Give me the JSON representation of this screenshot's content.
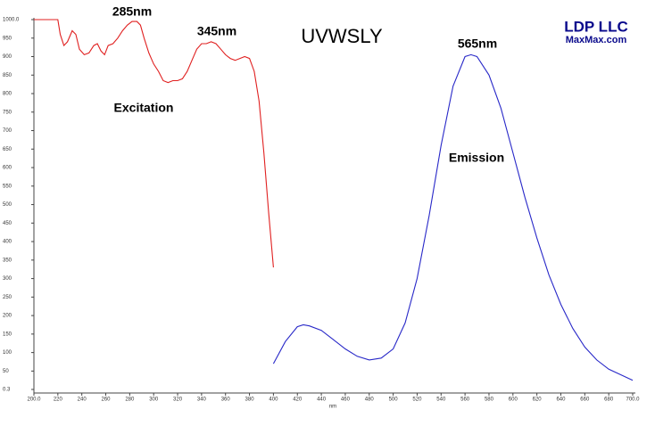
{
  "chart_data": {
    "type": "line",
    "x_label": "nm",
    "xlim": [
      200,
      700
    ],
    "ylim": [
      0.3,
      1000
    ],
    "xticks": [
      {
        "value": 200,
        "label": "200.0"
      },
      220,
      240,
      260,
      280,
      300,
      320,
      340,
      360,
      380,
      400,
      420,
      440,
      460,
      480,
      500,
      520,
      540,
      560,
      580,
      600,
      620,
      640,
      660,
      680,
      {
        "value": 700,
        "label": "700.0"
      }
    ],
    "yticks": [
      {
        "value": 1000,
        "label": "1000.0"
      },
      950,
      900,
      850,
      800,
      750,
      700,
      650,
      600,
      550,
      500,
      450,
      400,
      350,
      300,
      250,
      200,
      150,
      100,
      50,
      0.3
    ],
    "annotations": [
      "285nm",
      "345nm",
      "UVWSLY",
      "565nm"
    ],
    "brand": {
      "title": "LDP LLC",
      "site": "MaxMax.com"
    },
    "series": [
      {
        "name": "Excitation",
        "color": "#e02020",
        "x": [
          200,
          205,
          210,
          215,
          220,
          222,
          225,
          228,
          232,
          235,
          238,
          242,
          246,
          250,
          253,
          256,
          259,
          262,
          266,
          270,
          274,
          278,
          282,
          286,
          289,
          292,
          296,
          300,
          304,
          308,
          312,
          316,
          320,
          324,
          328,
          332,
          336,
          340,
          344,
          348,
          352,
          356,
          360,
          364,
          368,
          372,
          376,
          380,
          384,
          388,
          392,
          396,
          400
        ],
        "values": [
          1000,
          1000,
          1000,
          1000,
          1000,
          960,
          930,
          940,
          970,
          960,
          920,
          905,
          910,
          930,
          935,
          915,
          905,
          930,
          935,
          950,
          970,
          985,
          995,
          995,
          985,
          950,
          910,
          880,
          860,
          835,
          830,
          835,
          835,
          840,
          860,
          890,
          920,
          935,
          935,
          940,
          935,
          920,
          905,
          895,
          890,
          895,
          900,
          895,
          860,
          780,
          640,
          480,
          330
        ]
      },
      {
        "name": "Emission",
        "color": "#2828c8",
        "x": [
          400,
          410,
          420,
          425,
          430,
          440,
          450,
          460,
          470,
          480,
          490,
          500,
          510,
          520,
          530,
          540,
          550,
          560,
          565,
          570,
          580,
          590,
          600,
          610,
          620,
          630,
          640,
          650,
          660,
          670,
          680,
          690,
          700
        ],
        "values": [
          70,
          130,
          170,
          175,
          172,
          160,
          135,
          110,
          90,
          80,
          85,
          110,
          180,
          300,
          470,
          660,
          820,
          900,
          905,
          900,
          850,
          760,
          640,
          520,
          410,
          310,
          230,
          165,
          115,
          80,
          55,
          40,
          25
        ]
      }
    ]
  }
}
